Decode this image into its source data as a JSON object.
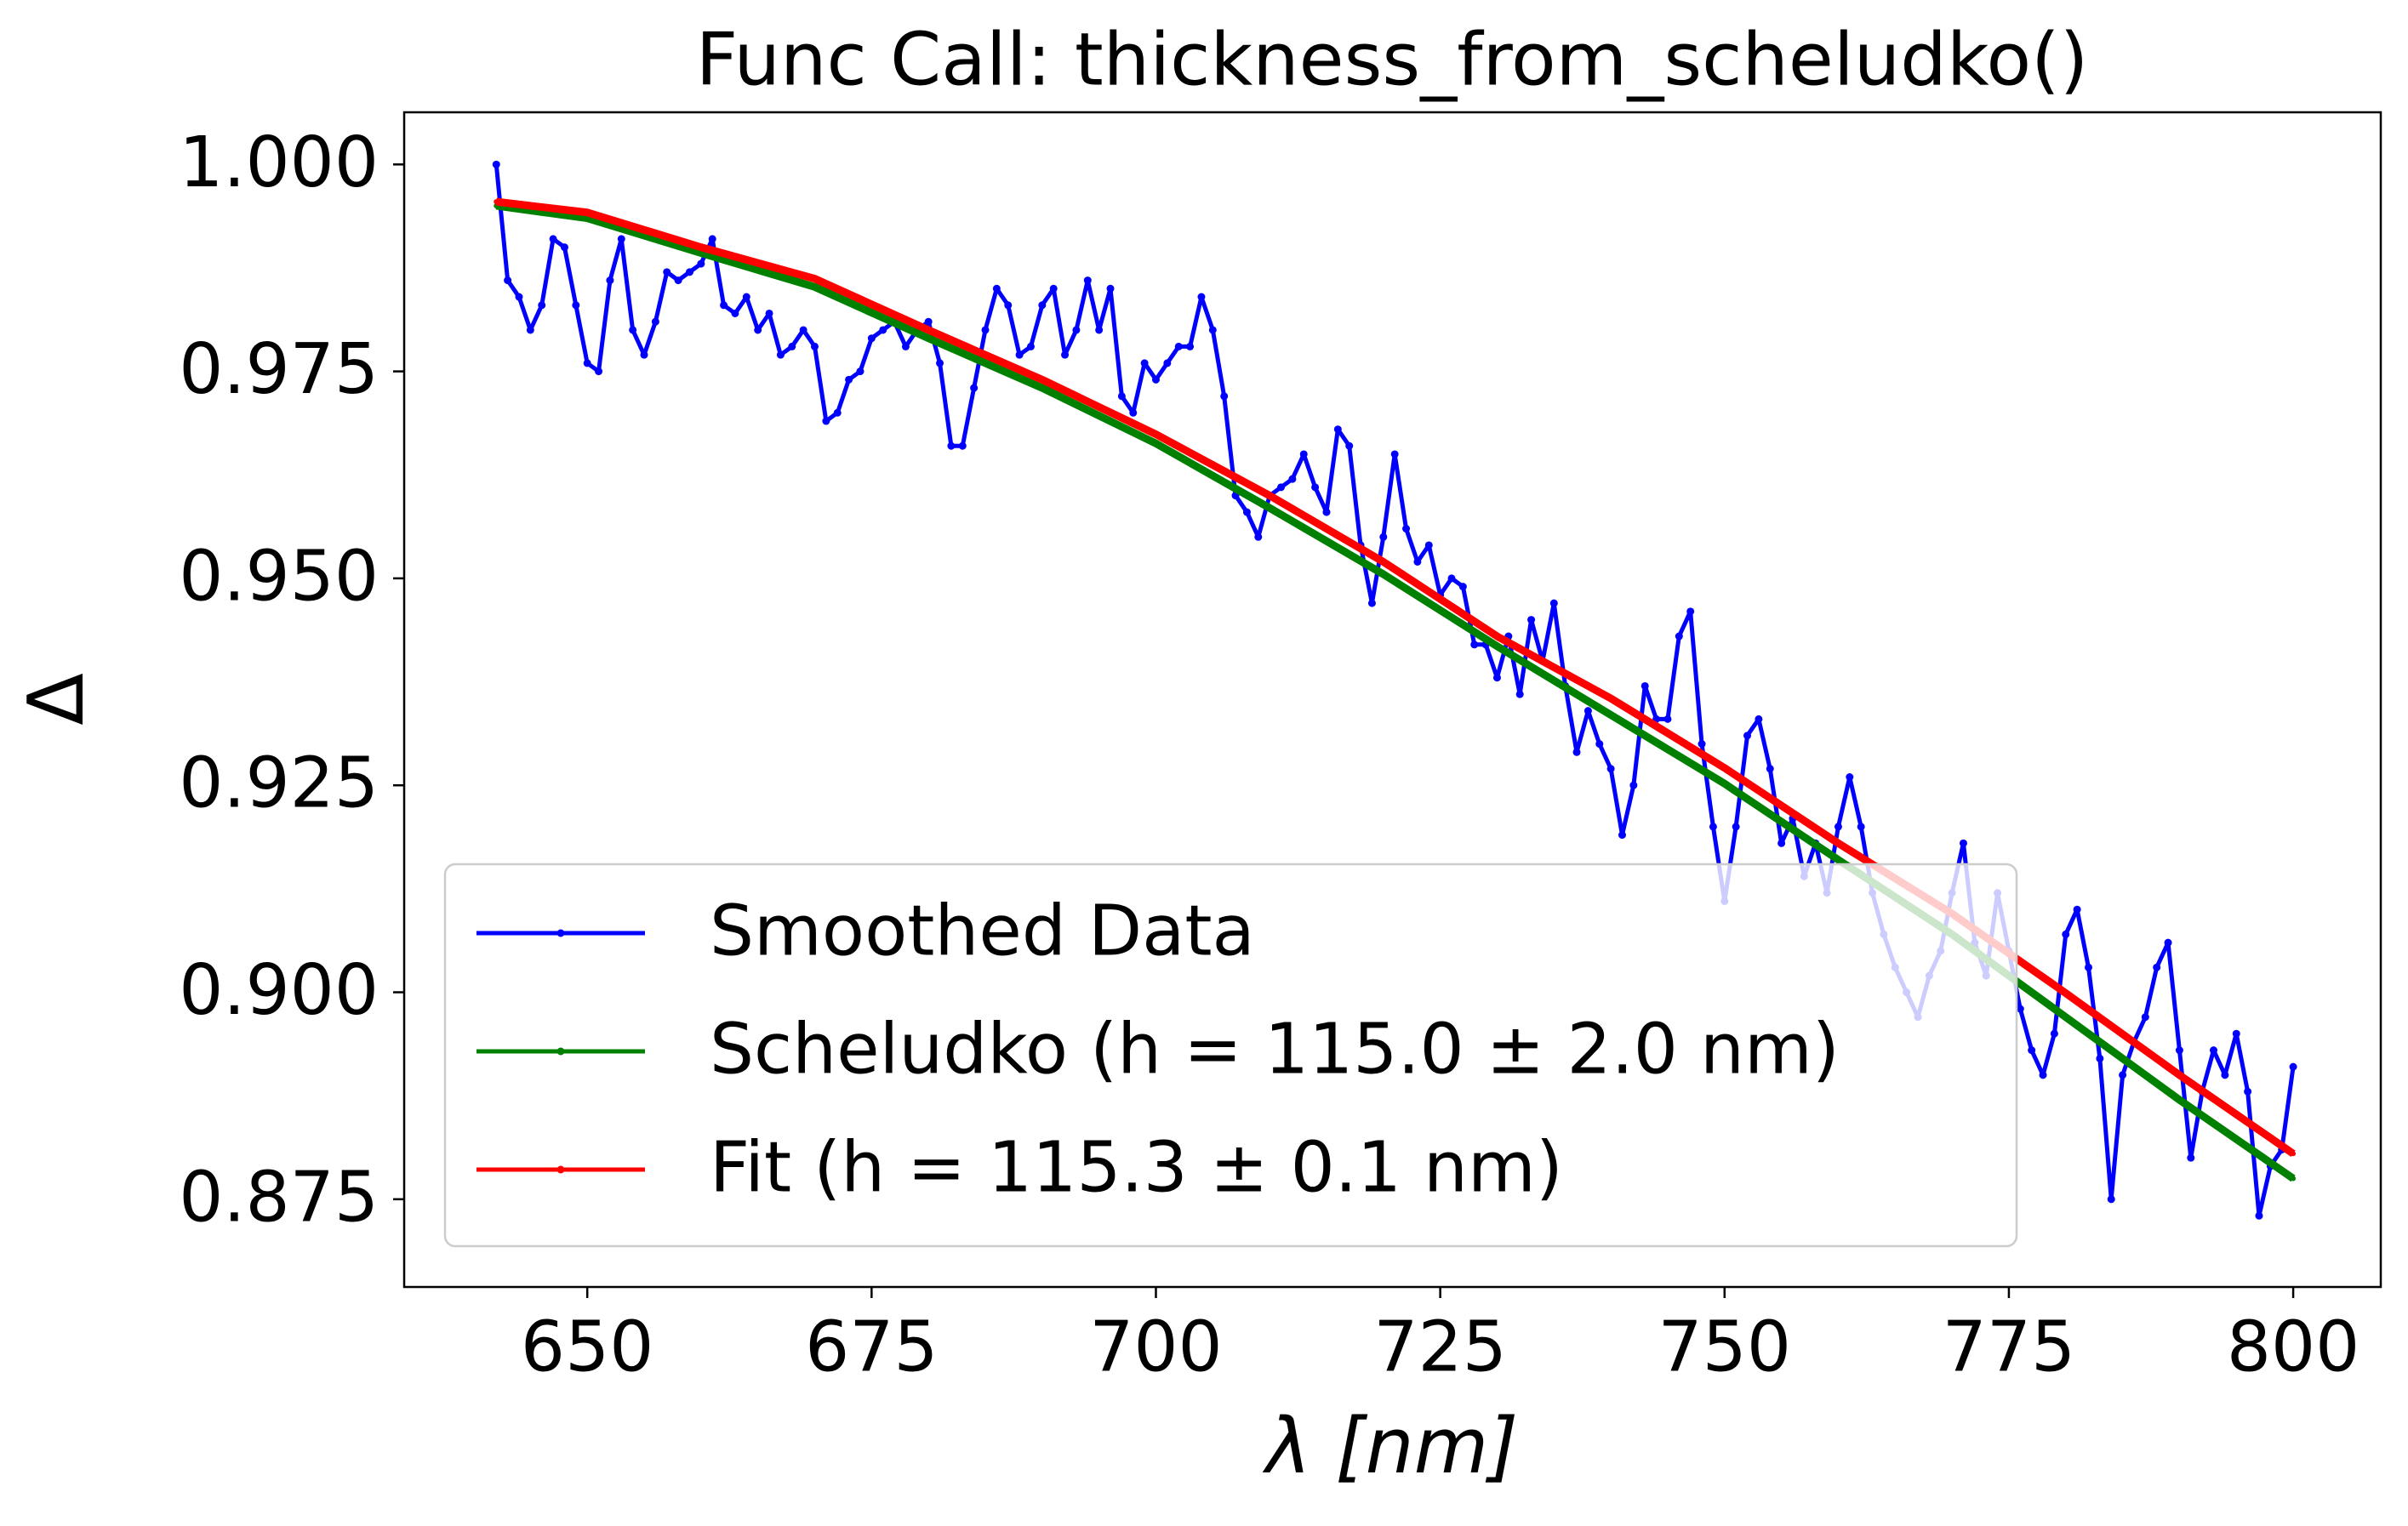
{
  "chart_data": {
    "type": "line",
    "title": "Func Call: thickness_from_scheludko()",
    "x_label": "λ [nm]",
    "y_label": "Δ",
    "xlim": [
      633.9,
      807.7
    ],
    "ylim": [
      0.8644,
      1.0063
    ],
    "xticks": [
      650,
      675,
      700,
      725,
      750,
      775,
      800
    ],
    "yticks": [
      {
        "value": 1,
        "label": "1.000"
      },
      0.975,
      {
        "value": 0.95,
        "label": "0.950"
      },
      0.925,
      {
        "value": 0.9,
        "label": "0.900"
      },
      0.875
    ],
    "legend": "lower left",
    "series": [
      {
        "name": "Smoothed Data",
        "color": "#0000ff",
        "x": [
          642,
          643,
          644,
          645,
          646,
          647,
          648,
          649,
          650,
          651,
          652,
          653,
          654,
          655,
          656,
          657,
          658,
          659,
          660,
          661,
          662,
          663,
          664,
          665,
          666,
          667,
          668,
          669,
          670,
          671,
          672,
          673,
          674,
          675,
          676,
          677,
          678,
          679,
          680,
          681,
          682,
          683,
          684,
          685,
          686,
          687,
          688,
          689,
          690,
          691,
          692,
          693,
          694,
          695,
          696,
          697,
          698,
          699,
          700,
          701,
          702,
          703,
          704,
          705,
          706,
          707,
          708,
          709,
          710,
          711,
          712,
          713,
          714,
          715,
          716,
          717,
          718,
          719,
          720,
          721,
          722,
          723,
          724,
          725,
          726,
          727,
          728,
          729,
          730,
          731,
          732,
          733,
          734,
          735,
          736,
          737,
          738,
          739,
          740,
          741,
          742,
          743,
          744,
          745,
          746,
          747,
          748,
          749,
          750,
          751,
          752,
          753,
          754,
          755,
          756,
          757,
          758,
          759,
          760,
          761,
          762,
          763,
          764,
          765,
          766,
          767,
          768,
          769,
          770,
          771,
          772,
          773,
          774,
          775,
          776,
          777,
          778,
          779,
          780,
          781,
          782,
          783,
          784,
          785,
          786,
          787,
          788,
          789,
          790,
          791,
          792,
          793,
          794,
          795,
          796,
          797,
          798,
          799,
          800
        ],
        "values": [
          1.0,
          0.986,
          0.984,
          0.98,
          0.983,
          0.991,
          0.99,
          0.983,
          0.976,
          0.975,
          0.986,
          0.991,
          0.98,
          0.977,
          0.981,
          0.987,
          0.986,
          0.987,
          0.988,
          0.991,
          0.983,
          0.982,
          0.984,
          0.98,
          0.982,
          0.977,
          0.978,
          0.98,
          0.978,
          0.969,
          0.97,
          0.974,
          0.975,
          0.979,
          0.98,
          0.981,
          0.978,
          0.98,
          0.981,
          0.976,
          0.966,
          0.966,
          0.973,
          0.98,
          0.985,
          0.983,
          0.977,
          0.978,
          0.983,
          0.985,
          0.977,
          0.98,
          0.986,
          0.98,
          0.985,
          0.972,
          0.97,
          0.976,
          0.974,
          0.976,
          0.978,
          0.978,
          0.984,
          0.98,
          0.972,
          0.96,
          0.958,
          0.955,
          0.96,
          0.961,
          0.962,
          0.965,
          0.961,
          0.958,
          0.968,
          0.966,
          0.954,
          0.947,
          0.955,
          0.965,
          0.956,
          0.952,
          0.954,
          0.948,
          0.95,
          0.949,
          0.942,
          0.942,
          0.938,
          0.943,
          0.936,
          0.945,
          0.94,
          0.947,
          0.937,
          0.929,
          0.934,
          0.93,
          0.927,
          0.919,
          0.925,
          0.937,
          0.933,
          0.933,
          0.943,
          0.946,
          0.93,
          0.92,
          0.911,
          0.92,
          0.931,
          0.933,
          0.927,
          0.918,
          0.921,
          0.914,
          0.918,
          0.912,
          0.92,
          0.926,
          0.92,
          0.912,
          0.907,
          0.903,
          0.9,
          0.897,
          0.902,
          0.905,
          0.912,
          0.918,
          0.906,
          0.902,
          0.912,
          0.905,
          0.898,
          0.893,
          0.89,
          0.895,
          0.907,
          0.91,
          0.903,
          0.892,
          0.875,
          0.89,
          0.894,
          0.897,
          0.903,
          0.906,
          0.893,
          0.88,
          0.888,
          0.893,
          0.89,
          0.895,
          0.888,
          0.873,
          0.879,
          0.881,
          0.891
        ]
      },
      {
        "name": "Scheludko (h = 115.0 ± 2.0 nm)",
        "color": "#008000",
        "x": [
          642,
          650,
          660,
          670,
          680,
          690,
          700,
          710,
          720,
          730,
          740,
          750,
          760,
          770,
          780,
          790,
          800
        ],
        "values": [
          0.995,
          0.9935,
          0.9893,
          0.9852,
          0.979,
          0.973,
          0.9663,
          0.9585,
          0.9505,
          0.9418,
          0.9335,
          0.9252,
          0.916,
          0.907,
          0.897,
          0.887,
          0.8775
        ]
      },
      {
        "name": "Fit (h = 115.3 ± 0.1 nm)",
        "color": "#ff0000",
        "x": [
          642,
          650,
          660,
          670,
          680,
          690,
          700,
          710,
          720,
          730,
          740,
          750,
          760,
          770,
          780,
          790,
          800
        ],
        "values": [
          0.9955,
          0.9942,
          0.99,
          0.9862,
          0.98,
          0.974,
          0.9674,
          0.96,
          0.952,
          0.943,
          0.9355,
          0.9271,
          0.918,
          0.9095,
          0.8999,
          0.89,
          0.8805
        ]
      }
    ]
  }
}
